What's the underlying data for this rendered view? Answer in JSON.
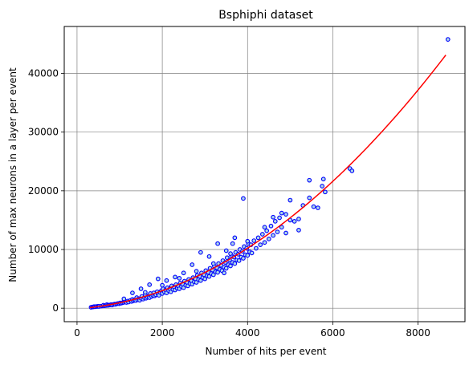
{
  "chart_data": {
    "type": "scatter",
    "title": "Bsphiphi dataset",
    "xlabel": "Number of hits per event",
    "ylabel": "Number of max neurons in a layer per event",
    "xlim": [
      -300,
      9100
    ],
    "ylim": [
      -2300,
      48000
    ],
    "x_ticks": [
      0,
      2000,
      4000,
      6000,
      8000
    ],
    "y_ticks": [
      0,
      10000,
      20000,
      30000,
      40000
    ],
    "grid": true,
    "colors": {
      "marker_edge": "#0000ff",
      "marker_face": "#add8e6",
      "fit_line": "#ff0000"
    },
    "fit": {
      "type": "polynomial",
      "degree": 2,
      "coefficients": [
        0.00052,
        0.5,
        -100
      ],
      "x_range": [
        300,
        8650
      ]
    },
    "points": [
      [
        330,
        150
      ],
      [
        360,
        200
      ],
      [
        380,
        220
      ],
      [
        400,
        260
      ],
      [
        420,
        240
      ],
      [
        450,
        280
      ],
      [
        480,
        300
      ],
      [
        500,
        310
      ],
      [
        520,
        300
      ],
      [
        560,
        340
      ],
      [
        600,
        380
      ],
      [
        620,
        500
      ],
      [
        650,
        420
      ],
      [
        680,
        460
      ],
      [
        700,
        600
      ],
      [
        720,
        480
      ],
      [
        750,
        520
      ],
      [
        780,
        560
      ],
      [
        800,
        600
      ],
      [
        820,
        540
      ],
      [
        850,
        620
      ],
      [
        880,
        700
      ],
      [
        900,
        660
      ],
      [
        930,
        740
      ],
      [
        960,
        800
      ],
      [
        990,
        760
      ],
      [
        1010,
        900
      ],
      [
        1040,
        860
      ],
      [
        1070,
        950
      ],
      [
        1100,
        1000
      ],
      [
        1130,
        1100
      ],
      [
        1160,
        980
      ],
      [
        1190,
        1200
      ],
      [
        1210,
        1050
      ],
      [
        1250,
        1300
      ],
      [
        1280,
        1150
      ],
      [
        1300,
        1500
      ],
      [
        1320,
        1250
      ],
      [
        1350,
        1400
      ],
      [
        1380,
        1300
      ],
      [
        1400,
        1800
      ],
      [
        1420,
        1450
      ],
      [
        1450,
        1600
      ],
      [
        1470,
        1350
      ],
      [
        1500,
        1700
      ],
      [
        1520,
        2000
      ],
      [
        1550,
        1550
      ],
      [
        1580,
        1800
      ],
      [
        1600,
        2300
      ],
      [
        1620,
        1700
      ],
      [
        1650,
        1900
      ],
      [
        1680,
        2100
      ],
      [
        1700,
        1800
      ],
      [
        1720,
        2500
      ],
      [
        1750,
        2000
      ],
      [
        1780,
        2200
      ],
      [
        1800,
        2600
      ],
      [
        1820,
        2100
      ],
      [
        1850,
        2300
      ],
      [
        1880,
        2800
      ],
      [
        1900,
        2400
      ],
      [
        1920,
        2200
      ],
      [
        1950,
        2700
      ],
      [
        1980,
        3000
      ],
      [
        2000,
        2500
      ],
      [
        2020,
        3300
      ],
      [
        2050,
        2800
      ],
      [
        2080,
        3100
      ],
      [
        2100,
        2600
      ],
      [
        2120,
        3500
      ],
      [
        2150,
        3000
      ],
      [
        2180,
        3300
      ],
      [
        2200,
        2800
      ],
      [
        2220,
        3800
      ],
      [
        2250,
        3200
      ],
      [
        2280,
        3600
      ],
      [
        2300,
        3100
      ],
      [
        2320,
        4000
      ],
      [
        2350,
        3400
      ],
      [
        2380,
        3700
      ],
      [
        2400,
        3300
      ],
      [
        2420,
        4300
      ],
      [
        2450,
        3700
      ],
      [
        2480,
        4100
      ],
      [
        2500,
        3500
      ],
      [
        2520,
        4600
      ],
      [
        2550,
        3900
      ],
      [
        2580,
        4400
      ],
      [
        2600,
        3800
      ],
      [
        2620,
        4900
      ],
      [
        2650,
        4200
      ],
      [
        2680,
        4700
      ],
      [
        2700,
        4100
      ],
      [
        2720,
        5200
      ],
      [
        2750,
        4500
      ],
      [
        2780,
        5000
      ],
      [
        2800,
        4400
      ],
      [
        2820,
        5600
      ],
      [
        2850,
        4900
      ],
      [
        2880,
        5400
      ],
      [
        2900,
        4700
      ],
      [
        2920,
        6000
      ],
      [
        2950,
        5200
      ],
      [
        2980,
        5700
      ],
      [
        3000,
        5000
      ],
      [
        3020,
        6400
      ],
      [
        3050,
        5500
      ],
      [
        3080,
        6100
      ],
      [
        3100,
        5400
      ],
      [
        3120,
        6800
      ],
      [
        3150,
        5900
      ],
      [
        3180,
        6500
      ],
      [
        3200,
        5700
      ],
      [
        3220,
        7200
      ],
      [
        3250,
        6200
      ],
      [
        3280,
        6900
      ],
      [
        3300,
        6100
      ],
      [
        3320,
        7600
      ],
      [
        3350,
        6600
      ],
      [
        3380,
        7300
      ],
      [
        3400,
        6400
      ],
      [
        3420,
        8100
      ],
      [
        3450,
        7000
      ],
      [
        3480,
        7800
      ],
      [
        3500,
        6800
      ],
      [
        3520,
        8600
      ],
      [
        3550,
        7400
      ],
      [
        3580,
        8200
      ],
      [
        3600,
        7200
      ],
      [
        3620,
        9000
      ],
      [
        3650,
        7800
      ],
      [
        3680,
        8700
      ],
      [
        3700,
        7600
      ],
      [
        3720,
        9500
      ],
      [
        3750,
        8200
      ],
      [
        3780,
        9200
      ],
      [
        3800,
        8100
      ],
      [
        3820,
        10000
      ],
      [
        3850,
        8700
      ],
      [
        3880,
        9700
      ],
      [
        3900,
        8500
      ],
      [
        3920,
        10500
      ],
      [
        3950,
        9100
      ],
      [
        3980,
        10200
      ],
      [
        4000,
        9000
      ],
      [
        4020,
        11000
      ],
      [
        4050,
        9600
      ],
      [
        4080,
        10800
      ],
      [
        4100,
        9400
      ],
      [
        4150,
        11500
      ],
      [
        4200,
        10200
      ],
      [
        4250,
        12000
      ],
      [
        4300,
        10800
      ],
      [
        4350,
        12600
      ],
      [
        4400,
        11200
      ],
      [
        4450,
        13200
      ],
      [
        4500,
        11800
      ],
      [
        4550,
        14000
      ],
      [
        4600,
        12400
      ],
      [
        4650,
        14800
      ],
      [
        4700,
        13000
      ],
      [
        4750,
        15400
      ],
      [
        4800,
        13800
      ],
      [
        4900,
        16000
      ],
      [
        5000,
        15000
      ],
      [
        5100,
        14800
      ],
      [
        5200,
        15200
      ],
      [
        5300,
        17500
      ],
      [
        3450,
        6000
      ],
      [
        3650,
        11000
      ],
      [
        3700,
        12000
      ],
      [
        4900,
        12800
      ],
      [
        2700,
        7400
      ],
      [
        3100,
        8800
      ],
      [
        3300,
        11000
      ],
      [
        2900,
        9500
      ],
      [
        2300,
        5300
      ],
      [
        2100,
        4700
      ],
      [
        1900,
        5000
      ],
      [
        1700,
        4000
      ],
      [
        1500,
        3300
      ],
      [
        1300,
        2600
      ],
      [
        2500,
        6000
      ],
      [
        3500,
        9800
      ],
      [
        3900,
        18700
      ],
      [
        5000,
        18400
      ],
      [
        5450,
        18800
      ],
      [
        5450,
        21800
      ],
      [
        5550,
        17300
      ],
      [
        5650,
        17100
      ],
      [
        5750,
        20800
      ],
      [
        5780,
        22000
      ],
      [
        5820,
        19800
      ],
      [
        6400,
        23800
      ],
      [
        6450,
        23400
      ],
      [
        8700,
        45800
      ],
      [
        1100,
        1600
      ],
      [
        1600,
        2700
      ],
      [
        2000,
        3900
      ],
      [
        2400,
        5100
      ],
      [
        2800,
        6300
      ],
      [
        3200,
        7600
      ],
      [
        3600,
        9300
      ],
      [
        4000,
        11400
      ],
      [
        4400,
        13800
      ],
      [
        4600,
        15500
      ],
      [
        4800,
        16200
      ],
      [
        5200,
        13300
      ]
    ]
  }
}
